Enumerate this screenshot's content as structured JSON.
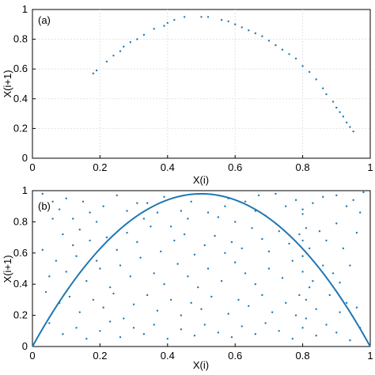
{
  "chart_data": [
    {
      "type": "scatter",
      "panel_label": "(a)",
      "xlabel": "X(i)",
      "ylabel": "X(i+1)",
      "xlim": [
        0,
        1
      ],
      "ylim": [
        0,
        1
      ],
      "xticks": [
        0,
        0.2,
        0.4,
        0.6,
        0.8,
        1
      ],
      "yticks": [
        0,
        0.2,
        0.4,
        0.6,
        0.8,
        1
      ],
      "xtick_labels": [
        "0",
        "0.2",
        "0.4",
        "0.6",
        "0.8",
        "1"
      ],
      "ytick_labels": [
        "0",
        "0.2",
        "0.4",
        "0.6",
        "0.8",
        "1"
      ],
      "grid": true,
      "series": [
        {
          "color": "#1f77b4",
          "points": [
            [
              0.18,
              0.57
            ],
            [
              0.19,
              0.59
            ],
            [
              0.22,
              0.65
            ],
            [
              0.24,
              0.69
            ],
            [
              0.26,
              0.72
            ],
            [
              0.27,
              0.75
            ],
            [
              0.29,
              0.78
            ],
            [
              0.31,
              0.8
            ],
            [
              0.33,
              0.83
            ],
            [
              0.36,
              0.87
            ],
            [
              0.39,
              0.89
            ],
            [
              0.4,
              0.91
            ],
            [
              0.42,
              0.93
            ],
            [
              0.45,
              0.95
            ],
            [
              0.5,
              0.95
            ],
            [
              0.52,
              0.95
            ],
            [
              0.56,
              0.93
            ],
            [
              0.58,
              0.92
            ],
            [
              0.6,
              0.9
            ],
            [
              0.62,
              0.88
            ],
            [
              0.64,
              0.86
            ],
            [
              0.66,
              0.84
            ],
            [
              0.68,
              0.82
            ],
            [
              0.7,
              0.79
            ],
            [
              0.72,
              0.76
            ],
            [
              0.74,
              0.73
            ],
            [
              0.76,
              0.7
            ],
            [
              0.78,
              0.67
            ],
            [
              0.8,
              0.62
            ],
            [
              0.82,
              0.58
            ],
            [
              0.84,
              0.53
            ],
            [
              0.86,
              0.47
            ],
            [
              0.87,
              0.43
            ],
            [
              0.89,
              0.38
            ],
            [
              0.9,
              0.34
            ],
            [
              0.91,
              0.31
            ],
            [
              0.92,
              0.28
            ],
            [
              0.93,
              0.24
            ],
            [
              0.94,
              0.21
            ],
            [
              0.95,
              0.18
            ]
          ]
        }
      ]
    },
    {
      "type": "scatter",
      "panel_label": "(b)",
      "xlabel": "X(i)",
      "ylabel": "X(i+1)",
      "xlim": [
        0,
        1
      ],
      "ylim": [
        0,
        1
      ],
      "xticks": [
        0,
        0.2,
        0.4,
        0.6,
        0.8,
        1
      ],
      "yticks": [
        0,
        0.2,
        0.4,
        0.6,
        0.8,
        1
      ],
      "xtick_labels": [
        "0",
        "0.2",
        "0.4",
        "0.6",
        "0.8",
        "1"
      ],
      "ytick_labels": [
        "0",
        "0.2",
        "0.4",
        "0.6",
        "0.8",
        "1"
      ],
      "grid": false,
      "curve": {
        "type": "parabola",
        "formula": "y = 3.92*x*(1-x)",
        "color": "#1f77b4"
      },
      "series": [
        {
          "color": "#1f77b4",
          "points": [
            [
              0.03,
              0.98
            ],
            [
              0.06,
              0.93
            ],
            [
              0.08,
              0.88
            ],
            [
              0.1,
              0.95
            ],
            [
              0.12,
              0.82
            ],
            [
              0.15,
              0.93
            ],
            [
              0.17,
              0.86
            ],
            [
              0.19,
              0.8
            ],
            [
              0.21,
              0.9
            ],
            [
              0.25,
              0.97
            ],
            [
              0.28,
              0.87
            ],
            [
              0.31,
              0.92
            ],
            [
              0.33,
              0.82
            ],
            [
              0.37,
              0.86
            ],
            [
              0.41,
              0.77
            ],
            [
              0.44,
              0.87
            ],
            [
              0.46,
              0.82
            ],
            [
              0.52,
              0.86
            ],
            [
              0.55,
              0.83
            ],
            [
              0.57,
              0.9
            ],
            [
              0.6,
              0.8
            ],
            [
              0.63,
              0.93
            ],
            [
              0.66,
              0.87
            ],
            [
              0.69,
              0.84
            ],
            [
              0.72,
              0.98
            ],
            [
              0.75,
              0.9
            ],
            [
              0.78,
              0.94
            ],
            [
              0.8,
              0.85
            ],
            [
              0.83,
              0.92
            ],
            [
              0.86,
              0.96
            ],
            [
              0.9,
              0.97
            ],
            [
              0.93,
              0.9
            ],
            [
              0.95,
              0.94
            ],
            [
              0.97,
              0.86
            ],
            [
              0.98,
              0.99
            ],
            [
              0.06,
              0.82
            ],
            [
              0.09,
              0.72
            ],
            [
              0.12,
              0.65
            ],
            [
              0.14,
              0.75
            ],
            [
              0.17,
              0.68
            ],
            [
              0.19,
              0.55
            ],
            [
              0.22,
              0.7
            ],
            [
              0.25,
              0.62
            ],
            [
              0.28,
              0.73
            ],
            [
              0.31,
              0.67
            ],
            [
              0.35,
              0.77
            ],
            [
              0.38,
              0.61
            ],
            [
              0.42,
              0.68
            ],
            [
              0.45,
              0.72
            ],
            [
              0.48,
              0.59
            ],
            [
              0.51,
              0.65
            ],
            [
              0.54,
              0.71
            ],
            [
              0.57,
              0.6
            ],
            [
              0.59,
              0.67
            ],
            [
              0.62,
              0.63
            ],
            [
              0.65,
              0.76
            ],
            [
              0.68,
              0.69
            ],
            [
              0.7,
              0.61
            ],
            [
              0.73,
              0.74
            ],
            [
              0.76,
              0.66
            ],
            [
              0.79,
              0.72
            ],
            [
              0.82,
              0.63
            ],
            [
              0.85,
              0.74
            ],
            [
              0.87,
              0.68
            ],
            [
              0.9,
              0.79
            ],
            [
              0.92,
              0.63
            ],
            [
              0.96,
              0.73
            ],
            [
              0.07,
              0.55
            ],
            [
              0.1,
              0.48
            ],
            [
              0.13,
              0.58
            ],
            [
              0.16,
              0.42
            ],
            [
              0.2,
              0.5
            ],
            [
              0.23,
              0.38
            ],
            [
              0.26,
              0.52
            ],
            [
              0.29,
              0.45
            ],
            [
              0.32,
              0.57
            ],
            [
              0.36,
              0.47
            ],
            [
              0.39,
              0.4
            ],
            [
              0.43,
              0.53
            ],
            [
              0.46,
              0.45
            ],
            [
              0.49,
              0.38
            ],
            [
              0.52,
              0.5
            ],
            [
              0.56,
              0.42
            ],
            [
              0.6,
              0.54
            ],
            [
              0.63,
              0.47
            ],
            [
              0.66,
              0.4
            ],
            [
              0.7,
              0.5
            ],
            [
              0.74,
              0.44
            ],
            [
              0.77,
              0.55
            ],
            [
              0.8,
              0.48
            ],
            [
              0.83,
              0.42
            ],
            [
              0.86,
              0.52
            ],
            [
              0.89,
              0.47
            ],
            [
              0.91,
              0.41
            ],
            [
              0.94,
              0.52
            ],
            [
              0.04,
              0.35
            ],
            [
              0.08,
              0.28
            ],
            [
              0.11,
              0.32
            ],
            [
              0.14,
              0.22
            ],
            [
              0.18,
              0.3
            ],
            [
              0.21,
              0.25
            ],
            [
              0.24,
              0.34
            ],
            [
              0.27,
              0.18
            ],
            [
              0.3,
              0.27
            ],
            [
              0.34,
              0.33
            ],
            [
              0.37,
              0.23
            ],
            [
              0.41,
              0.3
            ],
            [
              0.44,
              0.2
            ],
            [
              0.47,
              0.28
            ],
            [
              0.5,
              0.24
            ],
            [
              0.53,
              0.32
            ],
            [
              0.58,
              0.21
            ],
            [
              0.61,
              0.3
            ],
            [
              0.64,
              0.26
            ],
            [
              0.68,
              0.33
            ],
            [
              0.71,
              0.22
            ],
            [
              0.75,
              0.28
            ],
            [
              0.78,
              0.2
            ],
            [
              0.81,
              0.3
            ],
            [
              0.84,
              0.24
            ],
            [
              0.88,
              0.33
            ],
            [
              0.91,
              0.22
            ],
            [
              0.93,
              0.28
            ],
            [
              0.96,
              0.25
            ],
            [
              0.05,
              0.15
            ],
            [
              0.09,
              0.08
            ],
            [
              0.13,
              0.12
            ],
            [
              0.16,
              0.05
            ],
            [
              0.2,
              0.1
            ],
            [
              0.23,
              0.16
            ],
            [
              0.26,
              0.06
            ],
            [
              0.3,
              0.12
            ],
            [
              0.33,
              0.08
            ],
            [
              0.36,
              0.14
            ],
            [
              0.4,
              0.05
            ],
            [
              0.44,
              0.11
            ],
            [
              0.48,
              0.07
            ],
            [
              0.51,
              0.14
            ],
            [
              0.55,
              0.09
            ],
            [
              0.59,
              0.06
            ],
            [
              0.62,
              0.13
            ],
            [
              0.66,
              0.08
            ],
            [
              0.69,
              0.15
            ],
            [
              0.73,
              0.1
            ],
            [
              0.77,
              0.05
            ],
            [
              0.8,
              0.12
            ],
            [
              0.84,
              0.07
            ],
            [
              0.87,
              0.14
            ],
            [
              0.9,
              0.09
            ],
            [
              0.94,
              0.04
            ],
            [
              0.97,
              0.12
            ],
            [
              0.8,
              0.88
            ],
            [
              0.81,
              0.76
            ],
            [
              0.8,
              0.58
            ],
            [
              0.82,
              0.38
            ],
            [
              0.81,
              0.18
            ],
            [
              0.79,
              0.33
            ],
            [
              0.8,
              0.68
            ],
            [
              0.03,
              0.62
            ],
            [
              0.05,
              0.45
            ],
            [
              0.34,
              0.92
            ],
            [
              0.39,
              0.96
            ],
            [
              0.47,
              0.93
            ],
            [
              0.58,
              0.95
            ],
            [
              0.67,
              0.97
            ]
          ]
        }
      ]
    }
  ]
}
